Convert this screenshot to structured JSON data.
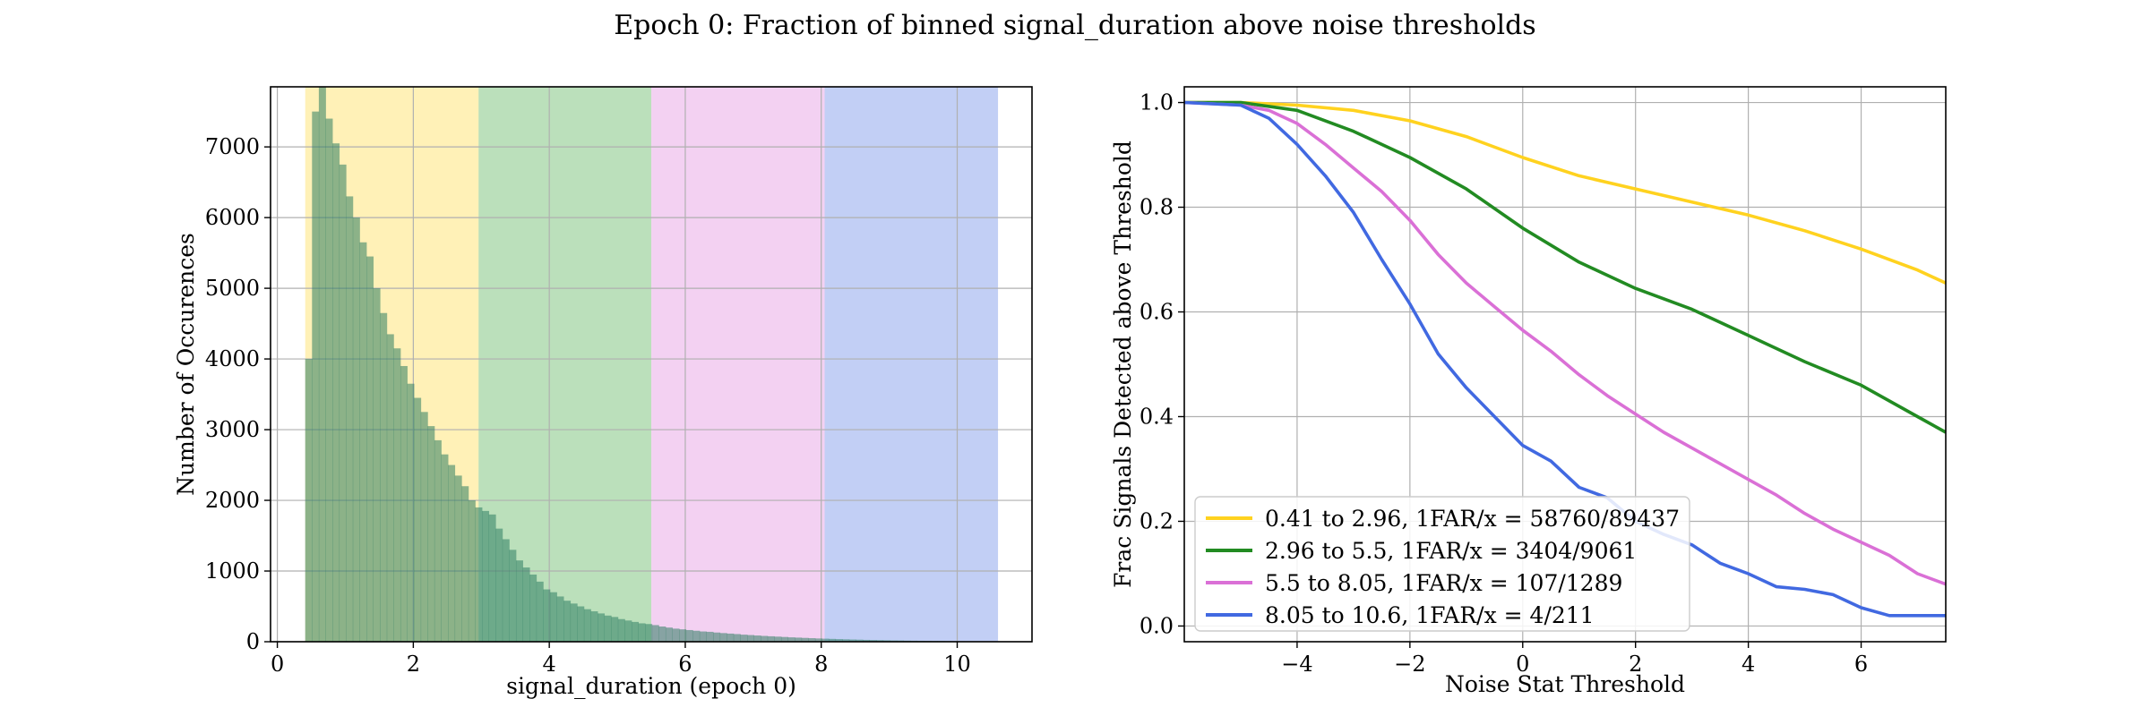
{
  "figure": {
    "title": "Epoch 0: Fraction of binned signal_duration above noise thresholds"
  },
  "chart_data": [
    {
      "type": "bar",
      "subtype": "histogram",
      "xlabel": "signal_duration (epoch 0)",
      "ylabel": "Number of Occurences",
      "xlim": [
        -0.1,
        11.1
      ],
      "ylim": [
        0,
        7850
      ],
      "xticks": [
        0,
        2,
        4,
        6,
        8,
        10
      ],
      "yticks": [
        0,
        1000,
        2000,
        3000,
        4000,
        5000,
        6000,
        7000
      ],
      "grid": true,
      "bin_width": 0.1,
      "bin_start": 0.41,
      "counts": [
        4000,
        7500,
        7850,
        7400,
        7050,
        6750,
        6300,
        6000,
        5650,
        5450,
        5000,
        4650,
        4350,
        4150,
        3900,
        3650,
        3450,
        3250,
        3050,
        2850,
        2650,
        2500,
        2350,
        2200,
        2000,
        1900,
        1850,
        1800,
        1600,
        1450,
        1300,
        1150,
        1050,
        950,
        850,
        740,
        700,
        640,
        580,
        540,
        500,
        460,
        430,
        400,
        370,
        350,
        320,
        300,
        280,
        260,
        250,
        235,
        215,
        200,
        185,
        175,
        165,
        155,
        145,
        140,
        130,
        122,
        115,
        108,
        100,
        94,
        88,
        82,
        77,
        72,
        67,
        62,
        58,
        54,
        50,
        46,
        43,
        40,
        37,
        34,
        31,
        29,
        26,
        24,
        22,
        20,
        18,
        17,
        15,
        14,
        13,
        12,
        11,
        10,
        9,
        8,
        7,
        6,
        5,
        5,
        4,
        4,
        3,
        3
      ],
      "bands": [
        {
          "x0": 0.41,
          "x1": 2.96,
          "color": "#ffd21f"
        },
        {
          "x0": 2.96,
          "x1": 5.5,
          "color": "#2ca02c"
        },
        {
          "x0": 5.5,
          "x1": 8.05,
          "color": "#da70d6"
        },
        {
          "x0": 8.05,
          "x1": 10.6,
          "color": "#4169e1"
        }
      ],
      "bar_color": "#2e7d62"
    },
    {
      "type": "line",
      "xlabel": "Noise Stat Threshold",
      "ylabel": "Frac Signals Detected above Threshold",
      "xlim": [
        -6,
        7.5
      ],
      "ylim": [
        -0.03,
        1.03
      ],
      "xticks": [
        -4,
        -2,
        0,
        2,
        4,
        6
      ],
      "yticks": [
        0.0,
        0.2,
        0.4,
        0.6,
        0.8,
        1.0
      ],
      "ytick_labels": [
        "0.0",
        "0.2",
        "0.4",
        "0.6",
        "0.8",
        "1.0"
      ],
      "xtick_labels": [
        "−4",
        "−2",
        "0",
        "2",
        "4",
        "6"
      ],
      "grid": true,
      "legend_position": "lower-left",
      "series": [
        {
          "name": "0.41 to 2.96, 1FAR/x = 58760/89437",
          "color": "#ffd21f",
          "x": [
            -6,
            -5,
            -4,
            -3,
            -2,
            -1,
            0,
            1,
            2,
            3,
            4,
            5,
            6,
            7,
            7.5
          ],
          "y": [
            1.0,
            1.0,
            0.995,
            0.985,
            0.965,
            0.935,
            0.895,
            0.86,
            0.835,
            0.81,
            0.785,
            0.755,
            0.72,
            0.68,
            0.655
          ]
        },
        {
          "name": "2.96 to 5.5, 1FAR/x = 3404/9061",
          "color": "#228b22",
          "x": [
            -6,
            -5,
            -4,
            -3,
            -2,
            -1,
            0,
            1,
            2,
            3,
            4,
            5,
            6,
            7,
            7.5
          ],
          "y": [
            1.0,
            1.0,
            0.985,
            0.945,
            0.895,
            0.835,
            0.76,
            0.695,
            0.645,
            0.605,
            0.555,
            0.505,
            0.46,
            0.4,
            0.37
          ]
        },
        {
          "name": "5.5 to 8.05, 1FAR/x = 107/1289",
          "color": "#da70d6",
          "x": [
            -6,
            -5,
            -4.5,
            -4,
            -3.5,
            -3,
            -2.5,
            -2,
            -1.5,
            -1,
            -0.5,
            0,
            0.5,
            1,
            1.5,
            2,
            2.5,
            3,
            3.5,
            4,
            4.5,
            5,
            5.5,
            6,
            6.5,
            7,
            7.5
          ],
          "y": [
            1.0,
            0.995,
            0.985,
            0.96,
            0.92,
            0.875,
            0.83,
            0.775,
            0.71,
            0.655,
            0.61,
            0.565,
            0.525,
            0.48,
            0.44,
            0.405,
            0.37,
            0.34,
            0.31,
            0.28,
            0.25,
            0.215,
            0.185,
            0.16,
            0.135,
            0.1,
            0.08
          ]
        },
        {
          "name": "8.05 to 10.6, 1FAR/x = 4/211",
          "color": "#4169e1",
          "x": [
            -6,
            -5,
            -4.5,
            -4,
            -3.5,
            -3,
            -2.5,
            -2,
            -1.5,
            -1,
            -0.5,
            0,
            0.5,
            1,
            1.5,
            2,
            2.5,
            3,
            3.5,
            4,
            4.5,
            5,
            5.5,
            6,
            6.5,
            7,
            7.5
          ],
          "y": [
            1.0,
            0.995,
            0.97,
            0.92,
            0.86,
            0.79,
            0.7,
            0.615,
            0.52,
            0.455,
            0.4,
            0.345,
            0.315,
            0.265,
            0.245,
            0.2,
            0.175,
            0.155,
            0.12,
            0.1,
            0.075,
            0.07,
            0.06,
            0.035,
            0.02,
            0.02,
            0.02
          ]
        }
      ]
    }
  ]
}
